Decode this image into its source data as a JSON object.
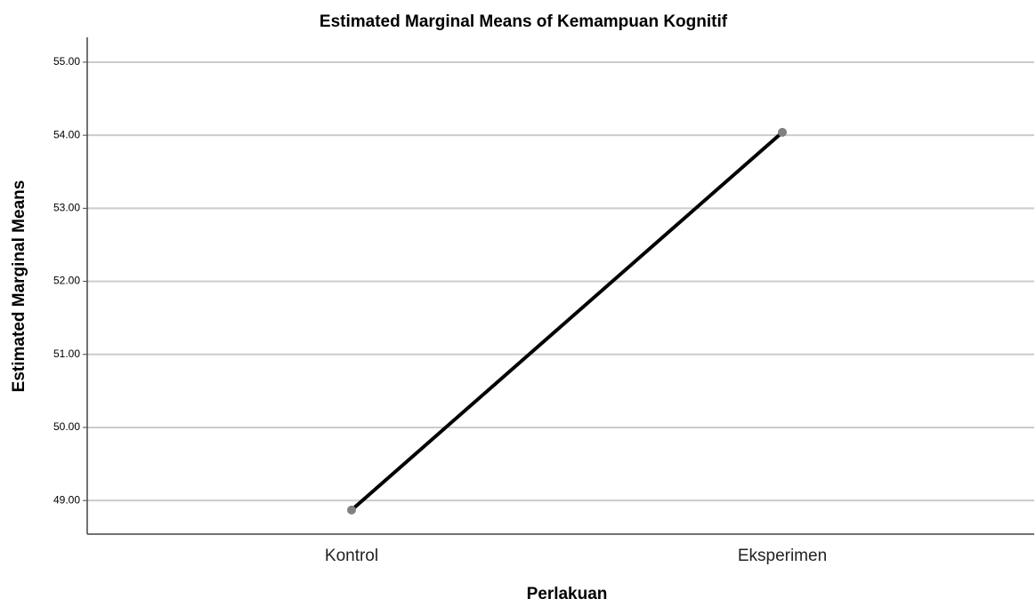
{
  "chart_data": {
    "type": "line",
    "title": "Estimated Marginal Means of Kemampuan Kognitif",
    "xlabel": "Perlakuan",
    "ylabel": "Estimated Marginal Means",
    "categories": [
      "Kontrol",
      "Eksperimen"
    ],
    "values": [
      48.87,
      54.04
    ],
    "color": "#000000",
    "marker_color": "#808080",
    "ylim": [
      48.54,
      55.34
    ],
    "yticks": [
      {
        "value": 49,
        "label": "49.00"
      },
      {
        "value": 50,
        "label": "50.00"
      },
      {
        "value": 51,
        "label": "51.00"
      },
      {
        "value": 52,
        "label": "52.00"
      },
      {
        "value": 53,
        "label": "53.00"
      },
      {
        "value": 54,
        "label": "54.00"
      },
      {
        "value": 55,
        "label": "55.00"
      }
    ],
    "grid": true
  }
}
